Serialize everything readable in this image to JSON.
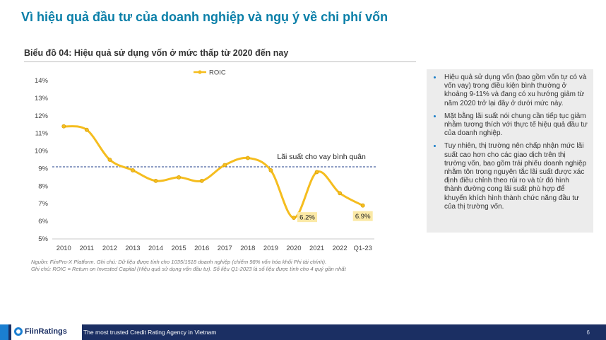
{
  "page": {
    "title": "Vì hiệu quả đầu tư của doanh nghiệp và ngụ ý về chi phí vốn",
    "chart_title": "Biểu đồ 04: Hiệu quả sử dụng vốn ở mức thấp từ 2020 đến nay",
    "page_number": "6"
  },
  "chart_data": {
    "type": "line",
    "title": "Biểu đồ 04: Hiệu quả sử dụng vốn ở mức thấp từ 2020 đến nay",
    "categories": [
      "2010",
      "2011",
      "2012",
      "2013",
      "2014",
      "2015",
      "2016",
      "2017",
      "2018",
      "2019",
      "2020",
      "2021",
      "2022",
      "Q1-23"
    ],
    "series": [
      {
        "name": "ROIC",
        "color": "#f5bd1f",
        "values": [
          11.4,
          11.2,
          9.5,
          8.9,
          8.3,
          8.5,
          8.3,
          9.2,
          9.6,
          8.9,
          6.2,
          8.8,
          7.6,
          6.9
        ]
      }
    ],
    "yticks": [
      "5%",
      "6%",
      "7%",
      "8%",
      "9%",
      "10%",
      "11%",
      "12%",
      "13%",
      "14%"
    ],
    "ylim": [
      5,
      14
    ],
    "reference_line": {
      "value": 9.1,
      "label": "Lãi suất cho vay bình quân",
      "color": "#1f3c88"
    },
    "data_labels": [
      {
        "index": 10,
        "text": "6.2%"
      },
      {
        "index": 13,
        "text": "6.9%"
      }
    ],
    "legend": "top-center",
    "grid": false
  },
  "source": {
    "line1": "Nguồn: FiinPro-X Platform. Ghi chú: Dữ liệu được tính cho 1035/1518 doanh nghiệp (chiếm 98% vốn hóa khối Phi tài chính).",
    "line2": "Ghi chú: ROIC = Return on Invested Capital (Hiệu quả sử dụng vốn đầu tư). Số liệu Q1-2023 là số liệu được tính cho 4 quý gần nhất"
  },
  "notes": [
    "Hiệu quả sử dụng vốn (bao gồm vốn tự có và vốn vay) trong điều kiện bình thường ở khoảng 9-11% và đang có xu hướng giảm từ năm 2020 trở lại đây ở dưới mức này.",
    "Mặt bằng lãi suất nói chung cần tiếp tục giảm nhằm tương thích với thực tế hiệu quả đầu tư của doanh nghiệp.",
    "Tuy nhiên, thị trường nên chấp nhận mức lãi suất cao hơn cho các giao dịch trên thị trường vốn, bao gồm trái phiếu doanh nghiệp nhằm tôn trọng nguyên tắc lãi suất được xác định điều chỉnh theo rủi ro và từ đó hình thành đường cong lãi suất phù hợp để khuyến khích hình thành chức năng đầu tư của thị trường vốn."
  ],
  "footer": {
    "logo": "FiinRatings",
    "tagline": "The most trusted Credit Rating Agency in Vietnam"
  }
}
